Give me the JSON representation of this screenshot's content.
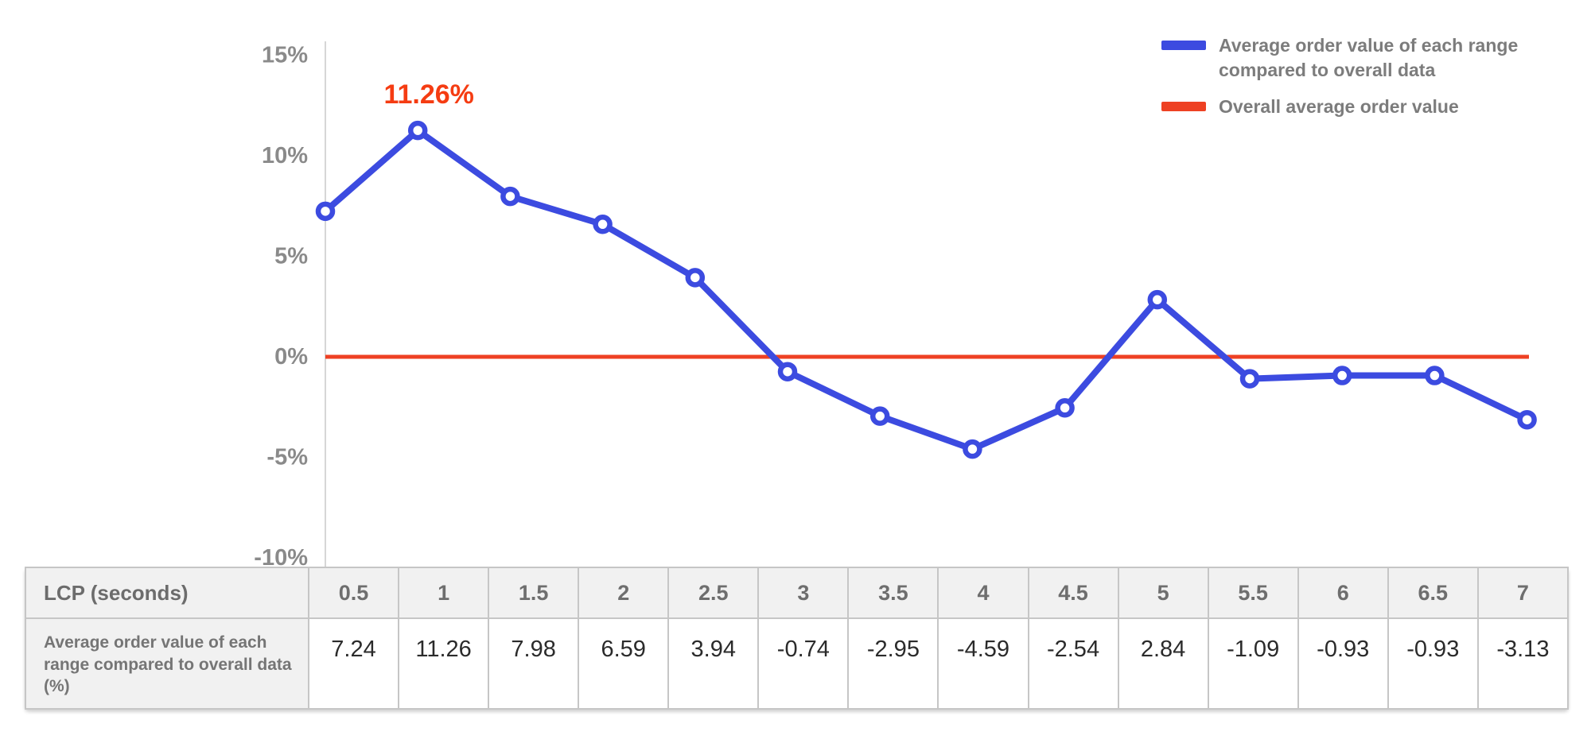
{
  "colors": {
    "blue": "#3c4be0",
    "red": "#ee4123",
    "annotation_red": "#f53c12",
    "axis_line": "#d6d6d6",
    "axis_text": "#8a8a8a",
    "legend_text": "#7c7c7c",
    "table_border": "#c6c6c6",
    "table_header_bg": "#f1f1f1",
    "value_text": "#2b2b2b"
  },
  "chart_data": {
    "type": "line",
    "title": "",
    "xlabel": "LCP (seconds)",
    "ylabel": "",
    "x": [
      0.5,
      1,
      1.5,
      2,
      2.5,
      3,
      3.5,
      4,
      4.5,
      5,
      5.5,
      6,
      6.5,
      7
    ],
    "series": [
      {
        "name": "Average order value of each range compared to overall data",
        "type": "line",
        "color_key": "blue",
        "values": [
          7.24,
          11.26,
          7.98,
          6.59,
          3.94,
          -0.74,
          -2.95,
          -4.59,
          -2.54,
          2.84,
          -1.09,
          -0.93,
          -0.93,
          -3.13
        ]
      },
      {
        "name": "Overall average order value",
        "type": "hline",
        "color_key": "red",
        "value": 0
      }
    ],
    "ylim": [
      -10,
      15
    ],
    "yticks": [
      "15%",
      "10%",
      "5%",
      "0%",
      "-5%",
      "-10%"
    ],
    "ytick_values": [
      15,
      10,
      5,
      0,
      -5,
      -10
    ],
    "grid": false,
    "legend_position": "top-right",
    "annotation": {
      "text": "11.26%",
      "at_x": 1,
      "at_y": 11.26
    }
  },
  "legend": {
    "items": [
      {
        "label": "Average order value of each range compared to overall data",
        "color_key": "blue"
      },
      {
        "label": "Overall average order value",
        "color_key": "red"
      }
    ]
  },
  "table": {
    "row1_header": "LCP (seconds)",
    "row2_header": "Average order value of each range compared to overall data (%)",
    "columns": [
      "0.5",
      "1",
      "1.5",
      "2",
      "2.5",
      "3",
      "3.5",
      "4",
      "4.5",
      "5",
      "5.5",
      "6",
      "6.5",
      "7"
    ],
    "values": [
      "7.24",
      "11.26",
      "7.98",
      "6.59",
      "3.94",
      "-0.74",
      "-2.95",
      "-4.59",
      "-2.54",
      "2.84",
      "-1.09",
      "-0.93",
      "-0.93",
      "-3.13"
    ]
  }
}
